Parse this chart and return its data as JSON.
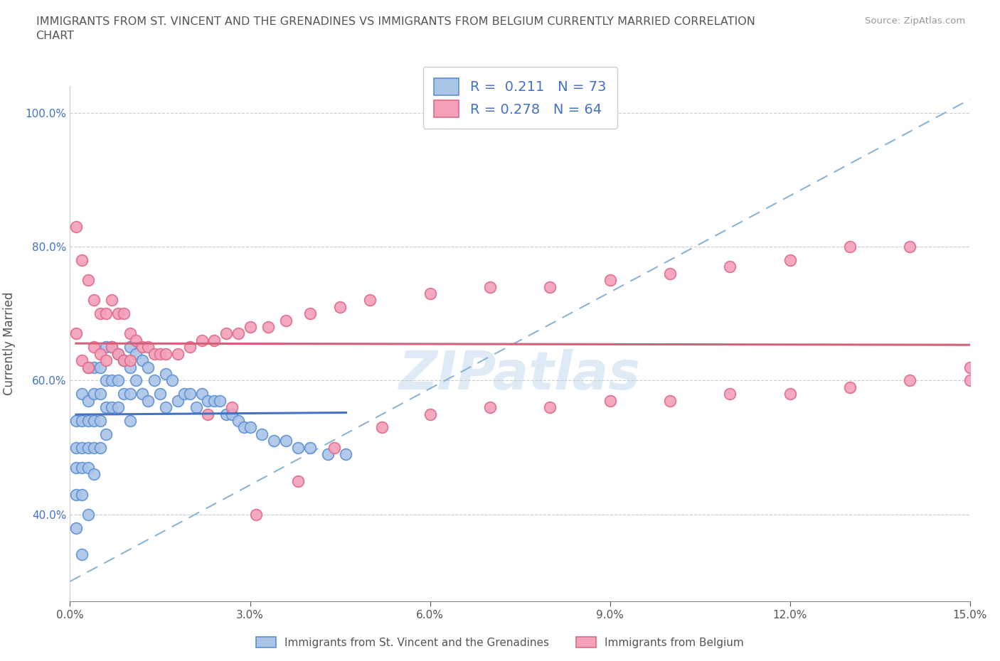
{
  "title": "IMMIGRANTS FROM ST. VINCENT AND THE GRENADINES VS IMMIGRANTS FROM BELGIUM CURRENTLY MARRIED CORRELATION\nCHART",
  "source": "Source: ZipAtlas.com",
  "ylabel": "Currently Married",
  "xlim": [
    0.0,
    0.15
  ],
  "ylim": [
    0.27,
    1.04
  ],
  "xticks": [
    0.0,
    0.03,
    0.06,
    0.09,
    0.12,
    0.15
  ],
  "xticklabels": [
    "0.0%",
    "3.0%",
    "6.0%",
    "9.0%",
    "12.0%",
    "15.0%"
  ],
  "yticks": [
    0.4,
    0.6,
    0.8,
    1.0
  ],
  "yticklabels": [
    "40.0%",
    "60.0%",
    "80.0%",
    "100.0%"
  ],
  "series1_color": "#aac4e8",
  "series2_color": "#f4a0b8",
  "series1_edge_color": "#5b8fd4",
  "series2_edge_color": "#e06888",
  "series1_line_color": "#4472c4",
  "series2_line_color": "#d4607a",
  "series1_label": "Immigrants from St. Vincent and the Grenadines",
  "series2_label": "Immigrants from Belgium",
  "R1": 0.211,
  "N1": 73,
  "R2": 0.278,
  "N2": 64,
  "watermark": "ZIPatlas",
  "grid_color": "#cccccc",
  "background_color": "#ffffff",
  "series1_x": [
    0.001,
    0.001,
    0.001,
    0.001,
    0.001,
    0.002,
    0.002,
    0.002,
    0.002,
    0.002,
    0.002,
    0.003,
    0.003,
    0.003,
    0.003,
    0.003,
    0.003,
    0.004,
    0.004,
    0.004,
    0.004,
    0.004,
    0.005,
    0.005,
    0.005,
    0.005,
    0.006,
    0.006,
    0.006,
    0.006,
    0.007,
    0.007,
    0.007,
    0.008,
    0.008,
    0.008,
    0.009,
    0.009,
    0.01,
    0.01,
    0.01,
    0.01,
    0.011,
    0.011,
    0.012,
    0.012,
    0.013,
    0.013,
    0.014,
    0.015,
    0.016,
    0.016,
    0.017,
    0.018,
    0.019,
    0.02,
    0.021,
    0.022,
    0.023,
    0.024,
    0.025,
    0.026,
    0.027,
    0.028,
    0.029,
    0.03,
    0.032,
    0.034,
    0.036,
    0.038,
    0.04,
    0.043,
    0.046
  ],
  "series1_y": [
    0.54,
    0.5,
    0.47,
    0.43,
    0.38,
    0.58,
    0.54,
    0.5,
    0.47,
    0.43,
    0.34,
    0.62,
    0.57,
    0.54,
    0.5,
    0.47,
    0.4,
    0.62,
    0.58,
    0.54,
    0.5,
    0.46,
    0.62,
    0.58,
    0.54,
    0.5,
    0.65,
    0.6,
    0.56,
    0.52,
    0.65,
    0.6,
    0.56,
    0.64,
    0.6,
    0.56,
    0.63,
    0.58,
    0.65,
    0.62,
    0.58,
    0.54,
    0.64,
    0.6,
    0.63,
    0.58,
    0.62,
    0.57,
    0.6,
    0.58,
    0.61,
    0.56,
    0.6,
    0.57,
    0.58,
    0.58,
    0.56,
    0.58,
    0.57,
    0.57,
    0.57,
    0.55,
    0.55,
    0.54,
    0.53,
    0.53,
    0.52,
    0.51,
    0.51,
    0.5,
    0.5,
    0.49,
    0.49
  ],
  "series2_x": [
    0.001,
    0.001,
    0.002,
    0.002,
    0.003,
    0.003,
    0.004,
    0.004,
    0.005,
    0.005,
    0.006,
    0.006,
    0.007,
    0.007,
    0.008,
    0.008,
    0.009,
    0.009,
    0.01,
    0.01,
    0.011,
    0.012,
    0.013,
    0.014,
    0.015,
    0.016,
    0.018,
    0.02,
    0.022,
    0.024,
    0.026,
    0.028,
    0.03,
    0.033,
    0.036,
    0.04,
    0.045,
    0.05,
    0.06,
    0.07,
    0.08,
    0.09,
    0.1,
    0.11,
    0.12,
    0.13,
    0.14,
    0.15,
    0.023,
    0.027,
    0.031,
    0.038,
    0.044,
    0.052,
    0.06,
    0.07,
    0.08,
    0.09,
    0.1,
    0.11,
    0.12,
    0.13,
    0.14,
    0.15
  ],
  "series2_y": [
    0.83,
    0.67,
    0.78,
    0.63,
    0.75,
    0.62,
    0.72,
    0.65,
    0.7,
    0.64,
    0.7,
    0.63,
    0.72,
    0.65,
    0.7,
    0.64,
    0.7,
    0.63,
    0.67,
    0.63,
    0.66,
    0.65,
    0.65,
    0.64,
    0.64,
    0.64,
    0.64,
    0.65,
    0.66,
    0.66,
    0.67,
    0.67,
    0.68,
    0.68,
    0.69,
    0.7,
    0.71,
    0.72,
    0.73,
    0.74,
    0.74,
    0.75,
    0.76,
    0.77,
    0.78,
    0.8,
    0.8,
    0.62,
    0.55,
    0.56,
    0.4,
    0.45,
    0.5,
    0.53,
    0.55,
    0.56,
    0.56,
    0.57,
    0.57,
    0.58,
    0.58,
    0.59,
    0.6,
    0.6
  ]
}
